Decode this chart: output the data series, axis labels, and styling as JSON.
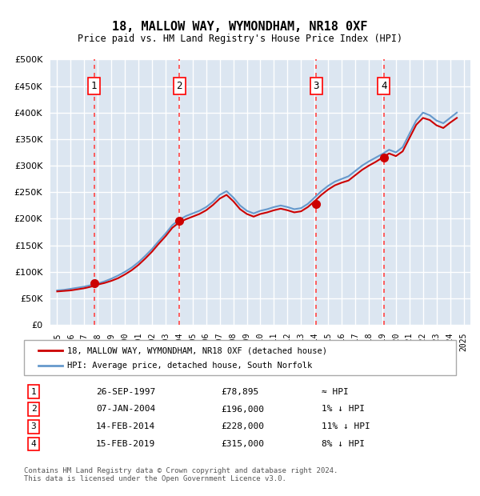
{
  "title": "18, MALLOW WAY, WYMONDHAM, NR18 0XF",
  "subtitle": "Price paid vs. HM Land Registry's House Price Index (HPI)",
  "footnote": "Contains HM Land Registry data © Crown copyright and database right 2024.\nThis data is licensed under the Open Government Licence v3.0.",
  "legend_line1": "18, MALLOW WAY, WYMONDHAM, NR18 0XF (detached house)",
  "legend_line2": "HPI: Average price, detached house, South Norfolk",
  "sales": [
    {
      "num": 1,
      "date": "26-SEP-1997",
      "price": 78895,
      "note": "≈ HPI",
      "x_year": 1997.73
    },
    {
      "num": 2,
      "date": "07-JAN-2004",
      "price": 196000,
      "note": "1% ↓ HPI",
      "x_year": 2004.02
    },
    {
      "num": 3,
      "date": "14-FEB-2014",
      "price": 228000,
      "note": "11% ↓ HPI",
      "x_year": 2014.12
    },
    {
      "num": 4,
      "date": "15-FEB-2019",
      "price": 315000,
      "note": "8% ↓ HPI",
      "x_year": 2019.12
    }
  ],
  "hpi_color": "#6699cc",
  "price_color": "#cc0000",
  "dashed_color": "#ff4444",
  "bg_color": "#dce6f1",
  "grid_color": "#ffffff",
  "ylim": [
    0,
    500000
  ],
  "xlim": [
    1994.5,
    2025.5
  ],
  "hpi_x": [
    1995,
    1995.5,
    1996,
    1996.5,
    1997,
    1997.5,
    1998,
    1998.5,
    1999,
    1999.5,
    2000,
    2000.5,
    2001,
    2001.5,
    2002,
    2002.5,
    2003,
    2003.5,
    2004,
    2004.5,
    2005,
    2005.5,
    2006,
    2006.5,
    2007,
    2007.5,
    2008,
    2008.5,
    2009,
    2009.5,
    2010,
    2010.5,
    2011,
    2011.5,
    2012,
    2012.5,
    2013,
    2013.5,
    2014,
    2014.5,
    2015,
    2015.5,
    2016,
    2016.5,
    2017,
    2017.5,
    2018,
    2018.5,
    2019,
    2019.5,
    2020,
    2020.5,
    2021,
    2021.5,
    2022,
    2022.5,
    2023,
    2023.5,
    2024,
    2024.5
  ],
  "hpi_y": [
    65000,
    66000,
    68000,
    70000,
    72000,
    75000,
    78000,
    82000,
    87000,
    93000,
    100000,
    108000,
    118000,
    130000,
    143000,
    158000,
    172000,
    188000,
    198000,
    205000,
    210000,
    215000,
    222000,
    232000,
    245000,
    252000,
    240000,
    225000,
    215000,
    210000,
    215000,
    218000,
    222000,
    225000,
    222000,
    218000,
    220000,
    228000,
    240000,
    252000,
    262000,
    270000,
    275000,
    280000,
    290000,
    300000,
    308000,
    315000,
    322000,
    330000,
    325000,
    335000,
    360000,
    385000,
    400000,
    395000,
    385000,
    380000,
    390000,
    400000
  ],
  "red_x": [
    1995,
    1995.5,
    1996,
    1996.5,
    1997,
    1997.5,
    1998,
    1998.5,
    1999,
    1999.5,
    2000,
    2000.5,
    2001,
    2001.5,
    2002,
    2002.5,
    2003,
    2003.5,
    2004,
    2004.5,
    2005,
    2005.5,
    2006,
    2006.5,
    2007,
    2007.5,
    2008,
    2008.5,
    2009,
    2009.5,
    2010,
    2010.5,
    2011,
    2011.5,
    2012,
    2012.5,
    2013,
    2013.5,
    2014,
    2014.5,
    2015,
    2015.5,
    2016,
    2016.5,
    2017,
    2017.5,
    2018,
    2018.5,
    2019,
    2019.5,
    2020,
    2020.5,
    2021,
    2021.5,
    2022,
    2022.5,
    2023,
    2023.5,
    2024,
    2024.5
  ],
  "red_y": [
    63000,
    64000,
    65000,
    67000,
    69000,
    72000,
    76000,
    79000,
    83000,
    88000,
    95000,
    103000,
    113000,
    125000,
    138000,
    153000,
    167000,
    183000,
    193000,
    199000,
    204000,
    209000,
    216000,
    226000,
    238000,
    245000,
    233000,
    218000,
    209000,
    204000,
    209000,
    212000,
    216000,
    219000,
    216000,
    212000,
    214000,
    222000,
    233000,
    245000,
    255000,
    263000,
    268000,
    272000,
    282000,
    292000,
    300000,
    307000,
    315000,
    323000,
    318000,
    327000,
    352000,
    377000,
    390000,
    386000,
    376000,
    371000,
    381000,
    390000
  ]
}
